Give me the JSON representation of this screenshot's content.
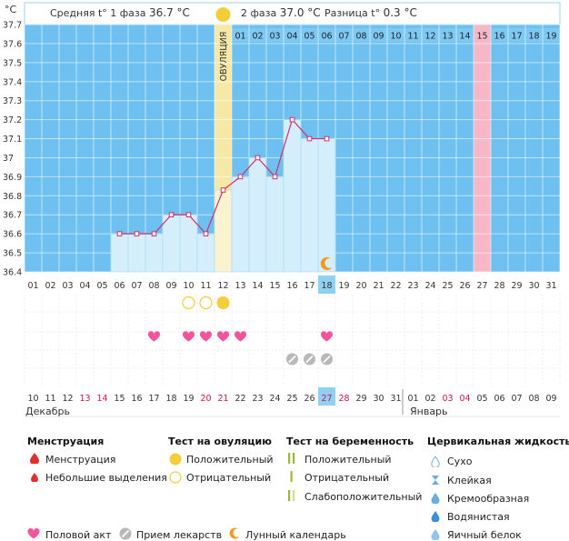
{
  "unit_label": "°C",
  "header": {
    "phase1_label": "Средняя t° 1 фаза",
    "phase1_value": "36.7 °C",
    "phase2_label": "2 фаза",
    "phase2_value": "37.0 °C",
    "diff_label": "Разница t°",
    "diff_value": "0.3 °C"
  },
  "ovulation_label": "ОВУЛЯЦИЯ",
  "cycle_days_phase2": [
    "01",
    "02",
    "03",
    "04",
    "05",
    "06",
    "07",
    "08",
    "09",
    "10",
    "11",
    "12",
    "13",
    "14",
    "15",
    "16",
    "17",
    "18",
    "19"
  ],
  "highlight_cycle_day": "15",
  "cycle_day_axis": [
    "01",
    "02",
    "03",
    "04",
    "05",
    "06",
    "07",
    "08",
    "09",
    "10",
    "11",
    "12",
    "13",
    "14",
    "15",
    "16",
    "17",
    "18",
    "19",
    "20",
    "21",
    "22",
    "23",
    "24",
    "25",
    "26",
    "27",
    "28",
    "29",
    "30",
    "31"
  ],
  "current_day": "18",
  "dates": [
    "10",
    "11",
    "12",
    "13",
    "14",
    "15",
    "16",
    "17",
    "18",
    "19",
    "20",
    "21",
    "22",
    "23",
    "24",
    "25",
    "26",
    "27",
    "28",
    "29",
    "30",
    "31",
    "01",
    "02",
    "03",
    "04",
    "05",
    "06",
    "07",
    "08",
    "09"
  ],
  "weekend_date_indices": [
    3,
    4,
    10,
    11,
    17,
    18,
    24,
    25
  ],
  "current_date_index": 17,
  "month_left": "Декабрь",
  "month_right": "Январь",
  "chart_data": {
    "type": "line",
    "x": [
      "06",
      "07",
      "08",
      "09",
      "10",
      "11",
      "12",
      "13",
      "14",
      "15",
      "16",
      "17",
      "18"
    ],
    "values": [
      36.6,
      36.6,
      36.6,
      36.7,
      36.7,
      36.6,
      36.83,
      36.9,
      37.0,
      36.9,
      37.2,
      37.1,
      37.1
    ],
    "ylim": [
      36.4,
      37.7
    ],
    "y_ticks": [
      "37.7",
      "37.6",
      "37.5",
      "37.4",
      "37.3",
      "37.2",
      "37.1",
      "37",
      "36.9",
      "36.8",
      "36.7",
      "36.6",
      "36.5",
      "36.4"
    ],
    "ovulation_day": "12",
    "grid": true
  },
  "markers": {
    "ovulation_positive_days": [
      "12"
    ],
    "ovulation_negative_days": [
      "10",
      "11"
    ],
    "intercourse_days": [
      "08",
      "10",
      "11",
      "12",
      "13",
      "18"
    ],
    "medication_days": [
      "16",
      "17",
      "18"
    ],
    "moon_day": "18"
  },
  "colors": {
    "sky": "#6dc0f0",
    "bar_fill": "#d4eefc",
    "line": "#d0306a",
    "ovulation_band": "#f6e9a8",
    "highlight_day": "#f6b8c8",
    "heart": "#f2559b",
    "sun": "#f5cc3a",
    "weekend_text": "#cc1155",
    "current_day_bg": "#8fd1f2"
  },
  "legend": {
    "menstruation": {
      "title": "Менструация",
      "items": [
        "Менструация",
        "Небольшие выделения"
      ]
    },
    "ovulation_test": {
      "title": "Тест на овуляцию",
      "items": [
        "Положительный",
        "Отрицательный"
      ]
    },
    "pregnancy_test": {
      "title": "Тест на беременность",
      "items": [
        "Положительный",
        "Отрицательный",
        "Слабоположительный"
      ]
    },
    "cervical": {
      "title": "Цервикальная жидкость",
      "items": [
        "Сухо",
        "Клейкая",
        "Кремообразная",
        "Водянистая",
        "Яичный белок"
      ]
    },
    "bottom": [
      "Половой акт",
      "Прием лекарств",
      "Лунный календарь"
    ]
  }
}
